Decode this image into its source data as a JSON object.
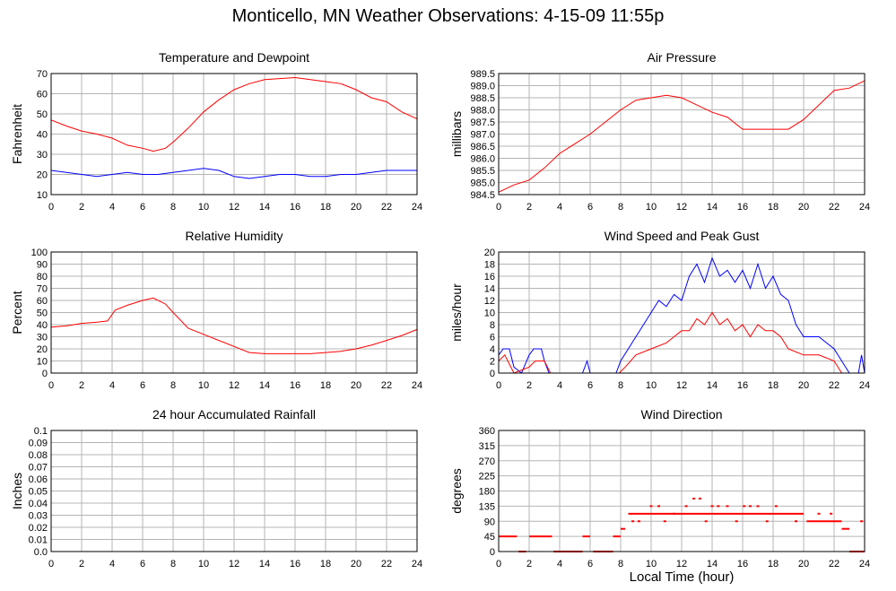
{
  "page": {
    "title": "Monticello, MN Weather Observations: 4-15-09 11:55p",
    "xlabel": "Local Time (hour)"
  },
  "colors": {
    "red": "#ff0000",
    "blue": "#0000ff",
    "grid": "#b4b4b4",
    "frame": "#000000"
  },
  "chart_data": [
    {
      "id": "temp",
      "type": "line",
      "title": "Temperature and Dewpoint",
      "ylabel": "Fahrenheit",
      "xlim": [
        0,
        24
      ],
      "xticks": [
        0,
        2,
        4,
        6,
        8,
        10,
        12,
        14,
        16,
        18,
        20,
        22,
        24
      ],
      "ylim": [
        10,
        70
      ],
      "yticks": [
        10,
        20,
        30,
        40,
        50,
        60,
        70
      ],
      "grid": true,
      "series": [
        {
          "color": "red",
          "points": [
            [
              0,
              47
            ],
            [
              1,
              44
            ],
            [
              2,
              41.5
            ],
            [
              3,
              40
            ],
            [
              4,
              38
            ],
            [
              5,
              34.5
            ],
            [
              6,
              33
            ],
            [
              6.7,
              31.5
            ],
            [
              7.5,
              33
            ],
            [
              8,
              36
            ],
            [
              9,
              43
            ],
            [
              10,
              51
            ],
            [
              11,
              57
            ],
            [
              12,
              62
            ],
            [
              13,
              65
            ],
            [
              14,
              67
            ],
            [
              15,
              67.5
            ],
            [
              16,
              68
            ],
            [
              17,
              67
            ],
            [
              18,
              66
            ],
            [
              19,
              65
            ],
            [
              20,
              62
            ],
            [
              21,
              58
            ],
            [
              22,
              56
            ],
            [
              23,
              51
            ],
            [
              24,
              47.5
            ]
          ]
        },
        {
          "color": "blue",
          "points": [
            [
              0,
              22
            ],
            [
              1,
              21
            ],
            [
              2,
              20
            ],
            [
              3,
              19
            ],
            [
              4,
              20
            ],
            [
              5,
              21
            ],
            [
              6,
              20
            ],
            [
              7,
              20
            ],
            [
              8,
              21
            ],
            [
              9,
              22
            ],
            [
              10,
              23
            ],
            [
              11,
              22
            ],
            [
              12,
              19
            ],
            [
              13,
              18
            ],
            [
              14,
              19
            ],
            [
              15,
              20
            ],
            [
              16,
              20
            ],
            [
              17,
              19
            ],
            [
              18,
              19
            ],
            [
              19,
              20
            ],
            [
              20,
              20
            ],
            [
              21,
              21
            ],
            [
              22,
              22
            ],
            [
              23,
              22
            ],
            [
              24,
              22
            ]
          ]
        }
      ]
    },
    {
      "id": "pressure",
      "type": "line",
      "title": "Air Pressure",
      "ylabel": "millibars",
      "xlim": [
        0,
        24
      ],
      "xticks": [
        0,
        2,
        4,
        6,
        8,
        10,
        12,
        14,
        16,
        18,
        20,
        22,
        24
      ],
      "ylim": [
        984.5,
        989.5
      ],
      "yticks": [
        "984.5",
        "985.0",
        "985.5",
        "986.0",
        "986.5",
        "987.0",
        "987.5",
        "988.0",
        "988.5",
        "989.0",
        "989.5"
      ],
      "grid": true,
      "series": [
        {
          "color": "red",
          "points": [
            [
              0,
              984.6
            ],
            [
              1,
              984.9
            ],
            [
              2,
              985.1
            ],
            [
              3,
              985.6
            ],
            [
              4,
              986.2
            ],
            [
              5,
              986.6
            ],
            [
              6,
              987.0
            ],
            [
              7,
              987.5
            ],
            [
              8,
              988.0
            ],
            [
              9,
              988.4
            ],
            [
              10,
              988.5
            ],
            [
              11,
              988.6
            ],
            [
              12,
              988.5
            ],
            [
              13,
              988.2
            ],
            [
              14,
              987.9
            ],
            [
              15,
              987.7
            ],
            [
              16,
              987.2
            ],
            [
              17,
              987.2
            ],
            [
              18,
              987.2
            ],
            [
              19,
              987.2
            ],
            [
              20,
              987.6
            ],
            [
              21,
              988.2
            ],
            [
              22,
              988.8
            ],
            [
              23,
              988.9
            ],
            [
              24,
              989.2
            ]
          ]
        }
      ]
    },
    {
      "id": "humidity",
      "type": "line",
      "title": "Relative Humidity",
      "ylabel": "Percent",
      "xlim": [
        0,
        24
      ],
      "xticks": [
        0,
        2,
        4,
        6,
        8,
        10,
        12,
        14,
        16,
        18,
        20,
        22,
        24
      ],
      "ylim": [
        0,
        100
      ],
      "yticks": [
        0,
        10,
        20,
        30,
        40,
        50,
        60,
        70,
        80,
        90,
        100
      ],
      "grid": true,
      "series": [
        {
          "color": "red",
          "points": [
            [
              0,
              38
            ],
            [
              1,
              39
            ],
            [
              2,
              41
            ],
            [
              3,
              42
            ],
            [
              3.7,
              43
            ],
            [
              4.2,
              52
            ],
            [
              5,
              56
            ],
            [
              6,
              60
            ],
            [
              6.7,
              62
            ],
            [
              7.5,
              57
            ],
            [
              8,
              50
            ],
            [
              9,
              37
            ],
            [
              10,
              32
            ],
            [
              11,
              27
            ],
            [
              12,
              22
            ],
            [
              13,
              17
            ],
            [
              14,
              16
            ],
            [
              15,
              16
            ],
            [
              16,
              16
            ],
            [
              17,
              16
            ],
            [
              18,
              17
            ],
            [
              19,
              18
            ],
            [
              20,
              20
            ],
            [
              21,
              23
            ],
            [
              22,
              27
            ],
            [
              23,
              31
            ],
            [
              24,
              36
            ]
          ]
        }
      ]
    },
    {
      "id": "wind",
      "type": "line",
      "title": "Wind Speed and Peak Gust",
      "ylabel": "miles/hour",
      "xlim": [
        0,
        24
      ],
      "xticks": [
        0,
        2,
        4,
        6,
        8,
        10,
        12,
        14,
        16,
        18,
        20,
        22,
        24
      ],
      "ylim": [
        0,
        20
      ],
      "yticks": [
        0,
        2,
        4,
        6,
        8,
        10,
        12,
        14,
        16,
        18,
        20
      ],
      "grid": true,
      "series": [
        {
          "color": "blue",
          "points": [
            [
              0,
              3
            ],
            [
              0.3,
              4
            ],
            [
              0.7,
              4
            ],
            [
              1,
              1
            ],
            [
              1.5,
              0
            ],
            [
              2,
              3
            ],
            [
              2.3,
              4
            ],
            [
              2.8,
              4
            ],
            [
              3,
              2
            ],
            [
              3.3,
              0
            ],
            [
              5.5,
              0
            ],
            [
              5.8,
              2
            ],
            [
              6,
              0
            ],
            [
              7.7,
              0
            ],
            [
              8,
              2
            ],
            [
              8.5,
              4
            ],
            [
              9,
              6
            ],
            [
              9.5,
              8
            ],
            [
              10,
              10
            ],
            [
              10.5,
              12
            ],
            [
              11,
              11
            ],
            [
              11.5,
              13
            ],
            [
              12,
              12
            ],
            [
              12.5,
              16
            ],
            [
              13,
              18
            ],
            [
              13.5,
              15
            ],
            [
              14,
              19
            ],
            [
              14.5,
              16
            ],
            [
              15,
              17
            ],
            [
              15.5,
              15
            ],
            [
              16,
              17
            ],
            [
              16.5,
              14
            ],
            [
              17,
              18
            ],
            [
              17.5,
              14
            ],
            [
              18,
              16
            ],
            [
              18.5,
              13
            ],
            [
              19,
              12
            ],
            [
              19.5,
              8
            ],
            [
              20,
              6
            ],
            [
              21,
              6
            ],
            [
              22,
              4
            ],
            [
              22.5,
              2
            ],
            [
              23,
              0
            ],
            [
              23.6,
              0
            ],
            [
              23.8,
              3
            ],
            [
              24,
              0
            ]
          ]
        },
        {
          "color": "red",
          "points": [
            [
              0,
              2
            ],
            [
              0.4,
              3
            ],
            [
              1,
              0
            ],
            [
              2,
              1
            ],
            [
              2.4,
              2
            ],
            [
              3,
              2
            ],
            [
              3.4,
              0
            ],
            [
              7.9,
              0
            ],
            [
              8.3,
              1
            ],
            [
              9,
              3
            ],
            [
              10,
              4
            ],
            [
              11,
              5
            ],
            [
              11.5,
              6
            ],
            [
              12,
              7
            ],
            [
              12.5,
              7
            ],
            [
              13,
              9
            ],
            [
              13.5,
              8
            ],
            [
              14,
              10
            ],
            [
              14.5,
              8
            ],
            [
              15,
              9
            ],
            [
              15.5,
              7
            ],
            [
              16,
              8
            ],
            [
              16.5,
              6
            ],
            [
              17,
              8
            ],
            [
              17.5,
              7
            ],
            [
              18,
              7
            ],
            [
              18.5,
              6
            ],
            [
              19,
              4
            ],
            [
              20,
              3
            ],
            [
              21,
              3
            ],
            [
              22,
              2
            ],
            [
              22.5,
              0
            ],
            [
              24,
              0
            ]
          ]
        }
      ]
    },
    {
      "id": "rain",
      "type": "line",
      "title": "24 hour Accumulated Rainfall",
      "ylabel": "Inches",
      "xlim": [
        0,
        24
      ],
      "xticks": [
        0,
        2,
        4,
        6,
        8,
        10,
        12,
        14,
        16,
        18,
        20,
        22,
        24
      ],
      "ylim": [
        0,
        0.1
      ],
      "yticks": [
        "0.0",
        "0.01",
        "0.02",
        "0.03",
        "0.04",
        "0.05",
        "0.06",
        "0.07",
        "0.08",
        "0.09",
        "0.1"
      ],
      "grid": true,
      "series": [
        {
          "color": "red",
          "points": [
            [
              0,
              0
            ],
            [
              24,
              0
            ]
          ]
        }
      ]
    },
    {
      "id": "direction",
      "type": "scatter",
      "title": "Wind Direction",
      "ylabel": "degrees",
      "xlim": [
        0,
        24
      ],
      "xticks": [
        0,
        2,
        4,
        6,
        8,
        10,
        12,
        14,
        16,
        18,
        20,
        22,
        24
      ],
      "ylim": [
        0,
        360
      ],
      "yticks": [
        0,
        45,
        90,
        135,
        180,
        225,
        270,
        315,
        360
      ],
      "grid": true,
      "segments": [
        {
          "color": "red",
          "y": 45,
          "x": [
            0,
            1.2
          ]
        },
        {
          "color": "red",
          "y": 0,
          "x": [
            1.3,
            1.8
          ]
        },
        {
          "color": "red",
          "y": 45,
          "x": [
            2,
            3.5
          ]
        },
        {
          "color": "red",
          "y": 0,
          "x": [
            3.6,
            5.5
          ]
        },
        {
          "color": "red",
          "y": 45,
          "x": [
            5.5,
            6
          ]
        },
        {
          "color": "red",
          "y": 0,
          "x": [
            6.2,
            7.5
          ]
        },
        {
          "color": "red",
          "y": 45,
          "x": [
            7.5,
            8
          ]
        },
        {
          "color": "red",
          "y": 67.5,
          "x": [
            8,
            8.3
          ]
        },
        {
          "color": "red",
          "y": 112.5,
          "x": [
            8.5,
            20
          ]
        },
        {
          "color": "red",
          "y": 90,
          "x": [
            20.2,
            22.5
          ]
        },
        {
          "color": "red",
          "y": 67.5,
          "x": [
            22.5,
            23
          ]
        },
        {
          "color": "red",
          "y": 0,
          "x": [
            23,
            24
          ]
        }
      ],
      "points": [
        [
          8.8,
          90
        ],
        [
          9.2,
          90
        ],
        [
          10,
          135
        ],
        [
          10.5,
          135
        ],
        [
          10.9,
          90
        ],
        [
          11.5,
          112.5
        ],
        [
          12.3,
          135
        ],
        [
          12.8,
          157.5
        ],
        [
          13.2,
          157.5
        ],
        [
          13.6,
          90
        ],
        [
          14,
          135
        ],
        [
          14.4,
          135
        ],
        [
          15,
          135
        ],
        [
          15.6,
          90
        ],
        [
          16.1,
          135
        ],
        [
          16.5,
          135
        ],
        [
          17,
          135
        ],
        [
          17.6,
          90
        ],
        [
          18.2,
          135
        ],
        [
          19.5,
          90
        ],
        [
          21,
          112.5
        ],
        [
          21.8,
          112.5
        ],
        [
          23.8,
          90
        ]
      ]
    }
  ]
}
